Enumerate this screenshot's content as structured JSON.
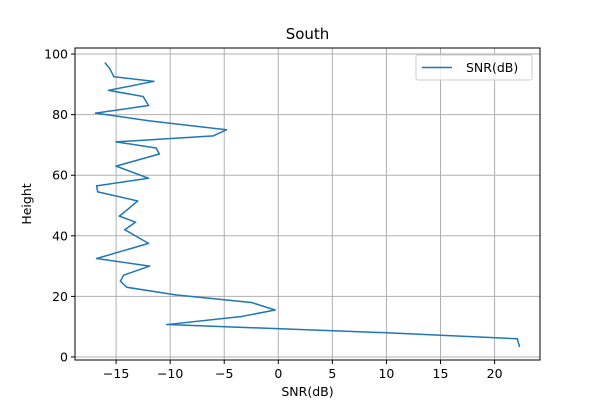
{
  "chart_data": {
    "type": "line",
    "title": "South",
    "xlabel": "SNR(dB)",
    "ylabel": "Height",
    "xlim": [
      -18.8,
      24.2
    ],
    "ylim": [
      -1,
      102
    ],
    "xticks": [
      -15,
      -10,
      -5,
      0,
      5,
      10,
      15,
      20
    ],
    "yticks": [
      0,
      20,
      40,
      60,
      80,
      100
    ],
    "grid": true,
    "legend": {
      "placement": "top-right",
      "entries": [
        "SNR(dB)"
      ]
    },
    "colors": {
      "series": "#1f77b4",
      "grid": "#b0b0b0"
    },
    "series": [
      {
        "name": "SNR(dB)",
        "points": [
          [
            22.3,
            3.5
          ],
          [
            22.1,
            6
          ],
          [
            10.0,
            8
          ],
          [
            -10.3,
            10.7
          ],
          [
            -3.5,
            13.3
          ],
          [
            -0.3,
            15.5
          ],
          [
            -2.5,
            18
          ],
          [
            -9.5,
            20.5
          ],
          [
            -14.0,
            23
          ],
          [
            -14.6,
            25
          ],
          [
            -14.3,
            27
          ],
          [
            -11.9,
            30
          ],
          [
            -16.8,
            32.5
          ],
          [
            -12.0,
            37.5
          ],
          [
            -14.2,
            42
          ],
          [
            -13.2,
            44.5
          ],
          [
            -14.7,
            46.5
          ],
          [
            -14.0,
            48.5
          ],
          [
            -13.0,
            51.5
          ],
          [
            -16.7,
            54.5
          ],
          [
            -16.8,
            56.5
          ],
          [
            -12.0,
            59
          ],
          [
            -15.0,
            63
          ],
          [
            -11.0,
            67
          ],
          [
            -11.3,
            69
          ],
          [
            -15.0,
            71
          ],
          [
            -6.0,
            73
          ],
          [
            -4.8,
            75
          ],
          [
            -12.0,
            78
          ],
          [
            -16.9,
            80.5
          ],
          [
            -12.0,
            83
          ],
          [
            -12.5,
            86
          ],
          [
            -15.7,
            88
          ],
          [
            -11.5,
            91
          ],
          [
            -15.2,
            92.5
          ],
          [
            -15.6,
            95.3
          ],
          [
            -16.0,
            97
          ]
        ]
      }
    ]
  }
}
